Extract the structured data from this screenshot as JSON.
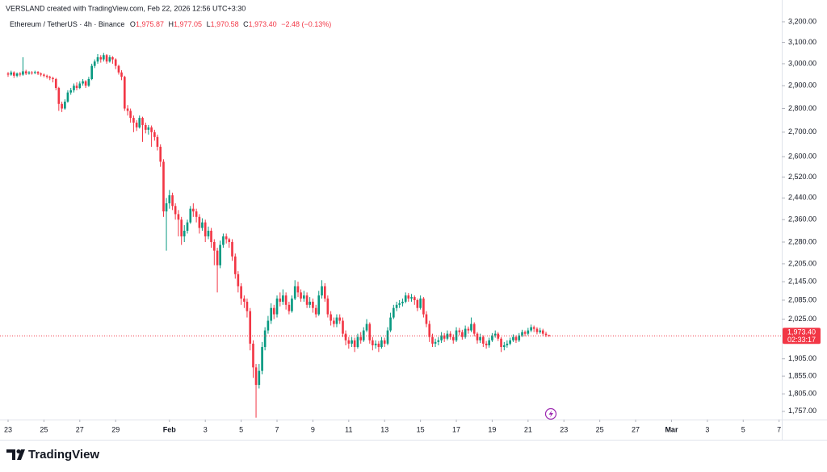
{
  "attribution": "VERSLAND created with TradingView.com, Feb 22, 2026 12:56 UTC+3:30",
  "brand": "TradingView",
  "chart_data": {
    "type": "candlestick",
    "title": "Ethereum / TetherUS · 4h · Binance",
    "legend": {
      "open_key": "O",
      "open": "1,975.87",
      "high_key": "H",
      "high": "1,977.05",
      "low_key": "L",
      "low": "1,970.58",
      "close_key": "C",
      "close": "1,973.40",
      "change": "−2.48 (−0.13%)"
    },
    "last_price_label": "1,973.40",
    "countdown": "02:33:17",
    "up_color": "#089981",
    "down_color": "#f23645",
    "log_scale": true,
    "grid": false,
    "xlim": [
      -0.45,
      43.15
    ],
    "ylim": [
      1735,
      3309
    ],
    "xticks": [
      {
        "value": 0,
        "label": "23"
      },
      {
        "value": 2,
        "label": "25"
      },
      {
        "value": 4,
        "label": "27"
      },
      {
        "value": 6,
        "label": "29"
      },
      {
        "value": 9,
        "label": "Feb"
      },
      {
        "value": 11,
        "label": "3"
      },
      {
        "value": 13,
        "label": "5"
      },
      {
        "value": 15,
        "label": "7"
      },
      {
        "value": 17,
        "label": "9"
      },
      {
        "value": 19,
        "label": "11"
      },
      {
        "value": 21,
        "label": "13"
      },
      {
        "value": 23,
        "label": "15"
      },
      {
        "value": 25,
        "label": "17"
      },
      {
        "value": 27,
        "label": "19"
      },
      {
        "value": 29,
        "label": "21"
      },
      {
        "value": 31,
        "label": "23"
      },
      {
        "value": 33,
        "label": "25"
      },
      {
        "value": 35,
        "label": "27"
      },
      {
        "value": 37,
        "label": "Mar"
      },
      {
        "value": 39,
        "label": "3"
      },
      {
        "value": 41,
        "label": "5"
      },
      {
        "value": 43,
        "label": "7"
      }
    ],
    "yticks": [
      {
        "value": 3200,
        "label": "3,200.00"
      },
      {
        "value": 3100,
        "label": "3,100.00"
      },
      {
        "value": 3000,
        "label": "3,000.00"
      },
      {
        "value": 2900,
        "label": "2,900.00"
      },
      {
        "value": 2800,
        "label": "2,800.00"
      },
      {
        "value": 2700,
        "label": "2,700.00"
      },
      {
        "value": 2600,
        "label": "2,600.00"
      },
      {
        "value": 2520,
        "label": "2,520.00"
      },
      {
        "value": 2440,
        "label": "2,440.00"
      },
      {
        "value": 2360,
        "label": "2,360.00"
      },
      {
        "value": 2280,
        "label": "2,280.00"
      },
      {
        "value": 2205,
        "label": "2,205.00"
      },
      {
        "value": 2145,
        "label": "2,145.00"
      },
      {
        "value": 2085,
        "label": "2,085.00"
      },
      {
        "value": 2025,
        "label": "2,025.00"
      },
      {
        "value": 1905,
        "label": "1,905.00"
      },
      {
        "value": 1855,
        "label": "1,855.00"
      },
      {
        "value": 1805,
        "label": "1,805.00"
      },
      {
        "value": 1757,
        "label": "1,757.00"
      }
    ],
    "x": [
      0,
      0.17,
      0.33,
      0.5,
      0.67,
      0.83,
      1,
      1.17,
      1.33,
      1.5,
      1.67,
      1.83,
      2,
      2.17,
      2.33,
      2.5,
      2.67,
      2.83,
      3,
      3.17,
      3.33,
      3.5,
      3.67,
      3.83,
      4,
      4.17,
      4.33,
      4.5,
      4.67,
      4.83,
      5,
      5.17,
      5.33,
      5.5,
      5.67,
      5.83,
      6,
      6.17,
      6.33,
      6.5,
      6.67,
      6.83,
      7,
      7.17,
      7.33,
      7.5,
      7.67,
      7.83,
      8,
      8.17,
      8.33,
      8.5,
      8.67,
      8.83,
      9,
      9.17,
      9.33,
      9.5,
      9.67,
      9.83,
      10,
      10.17,
      10.33,
      10.5,
      10.67,
      10.83,
      11,
      11.17,
      11.33,
      11.5,
      11.67,
      11.83,
      12,
      12.17,
      12.33,
      12.5,
      12.67,
      12.83,
      13,
      13.17,
      13.33,
      13.5,
      13.67,
      13.83,
      14,
      14.17,
      14.33,
      14.5,
      14.67,
      14.83,
      15,
      15.17,
      15.33,
      15.5,
      15.67,
      15.83,
      16,
      16.17,
      16.33,
      16.5,
      16.67,
      16.83,
      17,
      17.17,
      17.33,
      17.5,
      17.67,
      17.83,
      18,
      18.17,
      18.33,
      18.5,
      18.67,
      18.83,
      19,
      19.17,
      19.33,
      19.5,
      19.67,
      19.83,
      20,
      20.17,
      20.33,
      20.5,
      20.67,
      20.83,
      21,
      21.17,
      21.33,
      21.5,
      21.67,
      21.83,
      22,
      22.17,
      22.33,
      22.5,
      22.67,
      22.83,
      23,
      23.17,
      23.33,
      23.5,
      23.67,
      23.83,
      24,
      24.17,
      24.33,
      24.5,
      24.67,
      24.83,
      25,
      25.17,
      25.33,
      25.5,
      25.67,
      25.83,
      26,
      26.17,
      26.33,
      26.5,
      26.67,
      26.83,
      27,
      27.17,
      27.33,
      27.5,
      27.67,
      27.83,
      28,
      28.17,
      28.33,
      28.5,
      28.67,
      28.83,
      29,
      29.17,
      29.33,
      29.5,
      29.67,
      29.83,
      30,
      30.17
    ],
    "ohlc": [
      [
        2955,
        2962,
        2940,
        2950
      ],
      [
        2950,
        2968,
        2945,
        2960
      ],
      [
        2960,
        2965,
        2935,
        2945
      ],
      [
        2945,
        2960,
        2938,
        2955
      ],
      [
        2955,
        2962,
        2942,
        2950
      ],
      [
        2950,
        3030,
        2945,
        2965
      ],
      [
        2965,
        2972,
        2948,
        2955
      ],
      [
        2955,
        2966,
        2950,
        2960
      ],
      [
        2960,
        2966,
        2950,
        2958
      ],
      [
        2958,
        2968,
        2952,
        2962
      ],
      [
        2962,
        2966,
        2948,
        2955
      ],
      [
        2955,
        2960,
        2942,
        2950
      ],
      [
        2950,
        2955,
        2938,
        2945
      ],
      [
        2945,
        2950,
        2932,
        2940
      ],
      [
        2940,
        2945,
        2925,
        2935
      ],
      [
        2935,
        2940,
        2915,
        2930
      ],
      [
        2930,
        2935,
        2880,
        2890
      ],
      [
        2890,
        2895,
        2790,
        2820
      ],
      [
        2820,
        2830,
        2785,
        2800
      ],
      [
        2800,
        2840,
        2795,
        2830
      ],
      [
        2830,
        2880,
        2825,
        2870
      ],
      [
        2870,
        2890,
        2860,
        2880
      ],
      [
        2880,
        2910,
        2870,
        2900
      ],
      [
        2900,
        2915,
        2880,
        2890
      ],
      [
        2890,
        2920,
        2885,
        2910
      ],
      [
        2910,
        2930,
        2900,
        2920
      ],
      [
        2920,
        2925,
        2890,
        2900
      ],
      [
        2900,
        2940,
        2895,
        2930
      ],
      [
        2930,
        3000,
        2925,
        2990
      ],
      [
        2990,
        3020,
        2980,
        3010
      ],
      [
        3010,
        3045,
        3000,
        3030
      ],
      [
        3030,
        3040,
        3005,
        3020
      ],
      [
        3020,
        3050,
        3010,
        3040
      ],
      [
        3040,
        3045,
        3000,
        3010
      ],
      [
        3010,
        3040,
        3005,
        3030
      ],
      [
        3030,
        3035,
        3000,
        3020
      ],
      [
        3020,
        3025,
        2975,
        2990
      ],
      [
        2990,
        2995,
        2950,
        2960
      ],
      [
        2960,
        2970,
        2925,
        2940
      ],
      [
        2940,
        2945,
        2790,
        2800
      ],
      [
        2800,
        2815,
        2770,
        2790
      ],
      [
        2790,
        2800,
        2740,
        2760
      ],
      [
        2760,
        2770,
        2700,
        2740
      ],
      [
        2740,
        2750,
        2705,
        2720
      ],
      [
        2720,
        2770,
        2715,
        2760
      ],
      [
        2760,
        2765,
        2660,
        2730
      ],
      [
        2730,
        2740,
        2695,
        2710
      ],
      [
        2710,
        2730,
        2690,
        2720
      ],
      [
        2720,
        2728,
        2640,
        2700
      ],
      [
        2700,
        2710,
        2665,
        2680
      ],
      [
        2680,
        2690,
        2625,
        2640
      ],
      [
        2640,
        2650,
        2560,
        2580
      ],
      [
        2580,
        2590,
        2370,
        2390
      ],
      [
        2390,
        2440,
        2250,
        2420
      ],
      [
        2420,
        2470,
        2400,
        2450
      ],
      [
        2450,
        2460,
        2395,
        2410
      ],
      [
        2410,
        2420,
        2360,
        2380
      ],
      [
        2380,
        2395,
        2300,
        2360
      ],
      [
        2360,
        2370,
        2270,
        2300
      ],
      [
        2300,
        2340,
        2280,
        2320
      ],
      [
        2320,
        2360,
        2310,
        2350
      ],
      [
        2350,
        2410,
        2345,
        2400
      ],
      [
        2400,
        2420,
        2370,
        2390
      ],
      [
        2390,
        2400,
        2350,
        2370
      ],
      [
        2370,
        2380,
        2310,
        2330
      ],
      [
        2330,
        2365,
        2320,
        2350
      ],
      [
        2350,
        2360,
        2280,
        2300
      ],
      [
        2300,
        2335,
        2290,
        2320
      ],
      [
        2320,
        2330,
        2260,
        2280
      ],
      [
        2280,
        2290,
        2200,
        2250
      ],
      [
        2250,
        2260,
        2110,
        2200
      ],
      [
        2200,
        2285,
        2190,
        2270
      ],
      [
        2270,
        2310,
        2260,
        2300
      ],
      [
        2300,
        2310,
        2275,
        2290
      ],
      [
        2290,
        2295,
        2260,
        2280
      ],
      [
        2280,
        2290,
        2215,
        2230
      ],
      [
        2230,
        2240,
        2155,
        2170
      ],
      [
        2170,
        2180,
        2110,
        2130
      ],
      [
        2130,
        2140,
        2070,
        2090
      ],
      [
        2090,
        2100,
        2060,
        2080
      ],
      [
        2080,
        2090,
        2030,
        2050
      ],
      [
        2050,
        2060,
        1930,
        1950
      ],
      [
        1950,
        1960,
        1850,
        1880
      ],
      [
        1880,
        1890,
        1740,
        1830
      ],
      [
        1830,
        1890,
        1820,
        1870
      ],
      [
        1870,
        1955,
        1860,
        1940
      ],
      [
        1940,
        2000,
        1930,
        1990
      ],
      [
        1990,
        2035,
        1980,
        2020
      ],
      [
        2020,
        2075,
        2010,
        2060
      ],
      [
        2060,
        2070,
        2025,
        2040
      ],
      [
        2040,
        2100,
        2030,
        2090
      ],
      [
        2090,
        2110,
        2065,
        2080
      ],
      [
        2080,
        2120,
        2070,
        2100
      ],
      [
        2100,
        2110,
        2055,
        2070
      ],
      [
        2070,
        2080,
        2040,
        2050
      ],
      [
        2050,
        2100,
        2045,
        2090
      ],
      [
        2090,
        2150,
        2085,
        2130
      ],
      [
        2130,
        2145,
        2095,
        2110
      ],
      [
        2110,
        2120,
        2080,
        2090
      ],
      [
        2090,
        2115,
        2080,
        2100
      ],
      [
        2100,
        2110,
        2060,
        2070
      ],
      [
        2070,
        2095,
        2060,
        2080
      ],
      [
        2080,
        2090,
        2045,
        2060
      ],
      [
        2060,
        2070,
        2030,
        2040
      ],
      [
        2040,
        2115,
        2035,
        2100
      ],
      [
        2100,
        2150,
        2090,
        2130
      ],
      [
        2130,
        2140,
        2080,
        2090
      ],
      [
        2090,
        2100,
        2030,
        2040
      ],
      [
        2040,
        2050,
        2005,
        2020
      ],
      [
        2020,
        2030,
        2000,
        2010
      ],
      [
        2010,
        2040,
        2000,
        2030
      ],
      [
        2030,
        2040,
        2010,
        2020
      ],
      [
        2020,
        2030,
        1970,
        1980
      ],
      [
        1980,
        1990,
        1945,
        1960
      ],
      [
        1960,
        1970,
        1935,
        1950
      ],
      [
        1950,
        1970,
        1940,
        1960
      ],
      [
        1960,
        1968,
        1925,
        1940
      ],
      [
        1940,
        1980,
        1935,
        1970
      ],
      [
        1970,
        1985,
        1950,
        1960
      ],
      [
        1960,
        2000,
        1955,
        1990
      ],
      [
        1990,
        2025,
        1985,
        2010
      ],
      [
        2010,
        2015,
        1950,
        1960
      ],
      [
        1960,
        1970,
        1930,
        1945
      ],
      [
        1945,
        1960,
        1935,
        1950
      ],
      [
        1950,
        1958,
        1925,
        1940
      ],
      [
        1940,
        1970,
        1935,
        1960
      ],
      [
        1960,
        1968,
        1940,
        1950
      ],
      [
        1950,
        2000,
        1945,
        1990
      ],
      [
        1990,
        2045,
        1985,
        2030
      ],
      [
        2030,
        2070,
        2025,
        2060
      ],
      [
        2060,
        2080,
        2050,
        2070
      ],
      [
        2070,
        2085,
        2060,
        2075
      ],
      [
        2075,
        2090,
        2065,
        2080
      ],
      [
        2080,
        2110,
        2075,
        2100
      ],
      [
        2100,
        2108,
        2080,
        2090
      ],
      [
        2090,
        2105,
        2080,
        2095
      ],
      [
        2095,
        2100,
        2070,
        2085
      ],
      [
        2085,
        2090,
        2050,
        2060
      ],
      [
        2060,
        2100,
        2055,
        2090
      ],
      [
        2090,
        2095,
        2030,
        2040
      ],
      [
        2040,
        2050,
        2000,
        2010
      ],
      [
        2010,
        2020,
        1955,
        1970
      ],
      [
        1970,
        1980,
        1940,
        1950
      ],
      [
        1950,
        1965,
        1940,
        1955
      ],
      [
        1955,
        1970,
        1945,
        1960
      ],
      [
        1960,
        1985,
        1952,
        1975
      ],
      [
        1975,
        1982,
        1955,
        1965
      ],
      [
        1965,
        1990,
        1960,
        1980
      ],
      [
        1980,
        1988,
        1962,
        1970
      ],
      [
        1970,
        1978,
        1950,
        1960
      ],
      [
        1960,
        2000,
        1955,
        1990
      ],
      [
        1990,
        1998,
        1975,
        1985
      ],
      [
        1985,
        1992,
        1962,
        1970
      ],
      [
        1970,
        2005,
        1965,
        1995
      ],
      [
        1995,
        2002,
        1980,
        1990
      ],
      [
        1990,
        2030,
        1985,
        2010
      ],
      [
        2010,
        2015,
        1972,
        1980
      ],
      [
        1980,
        1985,
        1950,
        1960
      ],
      [
        1960,
        1980,
        1952,
        1970
      ],
      [
        1970,
        1975,
        1940,
        1950
      ],
      [
        1950,
        1958,
        1935,
        1945
      ],
      [
        1945,
        1968,
        1938,
        1960
      ],
      [
        1960,
        1982,
        1955,
        1975
      ],
      [
        1975,
        1990,
        1968,
        1980
      ],
      [
        1980,
        1985,
        1958,
        1965
      ],
      [
        1965,
        1970,
        1925,
        1940
      ],
      [
        1940,
        1955,
        1930,
        1945
      ],
      [
        1945,
        1960,
        1938,
        1950
      ],
      [
        1950,
        1968,
        1945,
        1960
      ],
      [
        1960,
        1978,
        1955,
        1970
      ],
      [
        1970,
        1975,
        1952,
        1960
      ],
      [
        1960,
        1982,
        1955,
        1975
      ],
      [
        1975,
        1992,
        1970,
        1985
      ],
      [
        1985,
        1990,
        1972,
        1980
      ],
      [
        1980,
        1998,
        1975,
        1990
      ],
      [
        1990,
        2008,
        1985,
        2000
      ],
      [
        2000,
        2005,
        1985,
        1995
      ],
      [
        1995,
        2000,
        1978,
        1985
      ],
      [
        1985,
        1998,
        1980,
        1990
      ],
      [
        1990,
        1995,
        1972,
        1980
      ],
      [
        1980,
        1986,
        1970,
        1975.87
      ],
      [
        1975.87,
        1977.05,
        1970.58,
        1973.4
      ]
    ]
  }
}
